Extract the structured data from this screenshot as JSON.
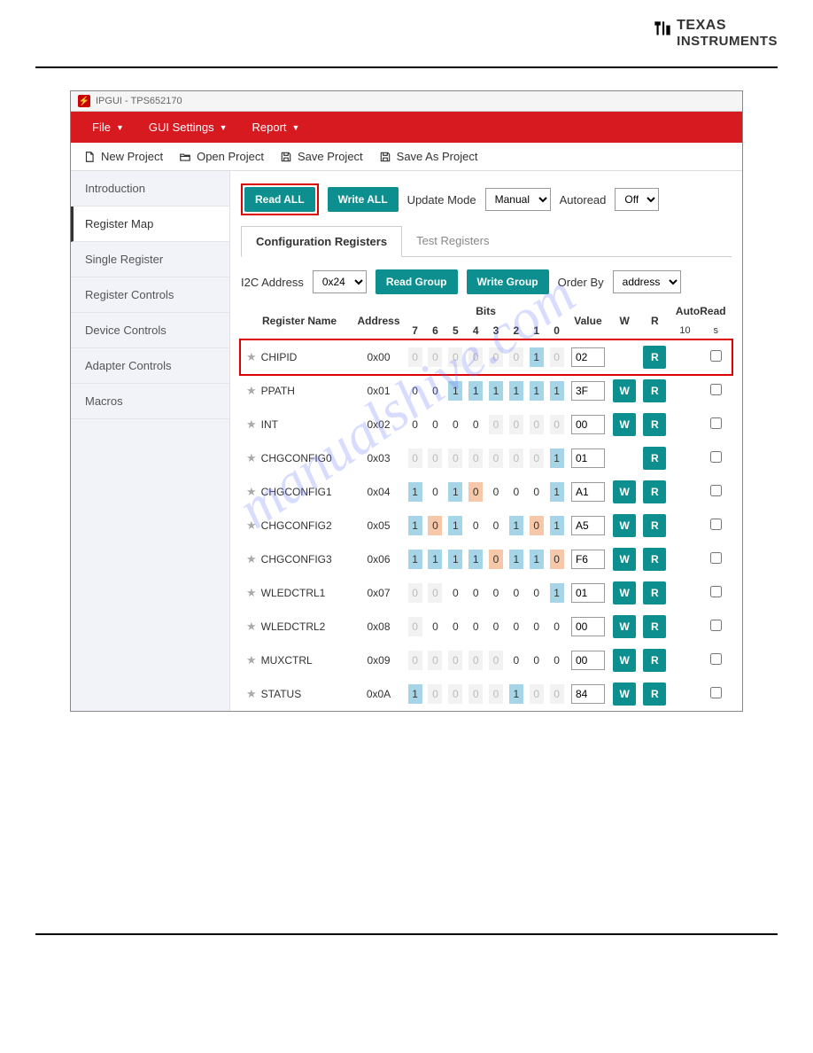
{
  "watermark": "manualshive.com",
  "logo": {
    "line1": "TEXAS",
    "line2": "INSTRUMENTS"
  },
  "window": {
    "title": "IPGUI - TPS652170"
  },
  "menu": {
    "items": [
      "File",
      "GUI Settings",
      "Report"
    ]
  },
  "toolbar": {
    "new_project": "New Project",
    "open_project": "Open Project",
    "save_project": "Save Project",
    "save_as_project": "Save As Project"
  },
  "sidebar": {
    "items": [
      "Introduction",
      "Register Map",
      "Single Register",
      "Register Controls",
      "Device Controls",
      "Adapter Controls",
      "Macros"
    ],
    "active_index": 1
  },
  "controls": {
    "read_all": "Read ALL",
    "write_all": "Write ALL",
    "update_mode_label": "Update Mode",
    "update_mode_value": "Manual",
    "autoread_label": "Autoread",
    "autoread_value": "Off"
  },
  "tabs": {
    "items": [
      "Configuration Registers",
      "Test Registers"
    ],
    "active_index": 0
  },
  "group": {
    "i2c_label": "I2C Address",
    "i2c_value": "0x24",
    "read_group": "Read Group",
    "write_group": "Write Group",
    "order_by_label": "Order By",
    "order_by_value": "address"
  },
  "table": {
    "headers": {
      "name": "Register Name",
      "address": "Address",
      "bits_title": "Bits",
      "bit_labels": [
        "7",
        "6",
        "5",
        "4",
        "3",
        "2",
        "1",
        "0"
      ],
      "value": "Value",
      "w": "W",
      "r": "R",
      "autoread_title": "AutoRead",
      "autoread_10": "10",
      "autoread_s": "s"
    },
    "colors": {
      "gray": "#f2f2f2",
      "blue": "#a6d5e8",
      "orange": "#f6c7a8",
      "teal": "#0e8f8f",
      "red_highlight": "#d00"
    },
    "rows": [
      {
        "name": "CHIPID",
        "addr": "0x00",
        "bits": [
          {
            "v": "0",
            "s": "gray"
          },
          {
            "v": "0",
            "s": "gray"
          },
          {
            "v": "0",
            "s": "gray"
          },
          {
            "v": "0",
            "s": "gray"
          },
          {
            "v": "0",
            "s": "gray"
          },
          {
            "v": "0",
            "s": "gray"
          },
          {
            "v": "1",
            "s": "blue"
          },
          {
            "v": "0",
            "s": "gray"
          }
        ],
        "value": "02",
        "w": false,
        "r": true,
        "highlight": true
      },
      {
        "name": "PPATH",
        "addr": "0x01",
        "bits": [
          {
            "v": "0",
            "s": "plain"
          },
          {
            "v": "0",
            "s": "plain"
          },
          {
            "v": "1",
            "s": "blue"
          },
          {
            "v": "1",
            "s": "blue"
          },
          {
            "v": "1",
            "s": "blue"
          },
          {
            "v": "1",
            "s": "blue"
          },
          {
            "v": "1",
            "s": "blue"
          },
          {
            "v": "1",
            "s": "blue"
          }
        ],
        "value": "3F",
        "w": true,
        "r": true
      },
      {
        "name": "INT",
        "addr": "0x02",
        "bits": [
          {
            "v": "0",
            "s": "plain"
          },
          {
            "v": "0",
            "s": "plain"
          },
          {
            "v": "0",
            "s": "plain"
          },
          {
            "v": "0",
            "s": "plain"
          },
          {
            "v": "0",
            "s": "gray"
          },
          {
            "v": "0",
            "s": "gray"
          },
          {
            "v": "0",
            "s": "gray"
          },
          {
            "v": "0",
            "s": "gray"
          }
        ],
        "value": "00",
        "w": true,
        "r": true
      },
      {
        "name": "CHGCONFIG0",
        "addr": "0x03",
        "bits": [
          {
            "v": "0",
            "s": "gray"
          },
          {
            "v": "0",
            "s": "gray"
          },
          {
            "v": "0",
            "s": "gray"
          },
          {
            "v": "0",
            "s": "gray"
          },
          {
            "v": "0",
            "s": "gray"
          },
          {
            "v": "0",
            "s": "gray"
          },
          {
            "v": "0",
            "s": "gray"
          },
          {
            "v": "1",
            "s": "blue"
          }
        ],
        "value": "01",
        "w": false,
        "r": true
      },
      {
        "name": "CHGCONFIG1",
        "addr": "0x04",
        "bits": [
          {
            "v": "1",
            "s": "blue"
          },
          {
            "v": "0",
            "s": "plain"
          },
          {
            "v": "1",
            "s": "blue"
          },
          {
            "v": "0",
            "s": "orange"
          },
          {
            "v": "0",
            "s": "plain"
          },
          {
            "v": "0",
            "s": "plain"
          },
          {
            "v": "0",
            "s": "plain"
          },
          {
            "v": "1",
            "s": "blue"
          }
        ],
        "value": "A1",
        "w": true,
        "r": true
      },
      {
        "name": "CHGCONFIG2",
        "addr": "0x05",
        "bits": [
          {
            "v": "1",
            "s": "blue"
          },
          {
            "v": "0",
            "s": "orange"
          },
          {
            "v": "1",
            "s": "blue"
          },
          {
            "v": "0",
            "s": "plain"
          },
          {
            "v": "0",
            "s": "plain"
          },
          {
            "v": "1",
            "s": "blue"
          },
          {
            "v": "0",
            "s": "orange"
          },
          {
            "v": "1",
            "s": "blue"
          }
        ],
        "value": "A5",
        "w": true,
        "r": true
      },
      {
        "name": "CHGCONFIG3",
        "addr": "0x06",
        "bits": [
          {
            "v": "1",
            "s": "blue"
          },
          {
            "v": "1",
            "s": "blue"
          },
          {
            "v": "1",
            "s": "blue"
          },
          {
            "v": "1",
            "s": "blue"
          },
          {
            "v": "0",
            "s": "orange"
          },
          {
            "v": "1",
            "s": "blue"
          },
          {
            "v": "1",
            "s": "blue"
          },
          {
            "v": "0",
            "s": "orange"
          }
        ],
        "value": "F6",
        "w": true,
        "r": true
      },
      {
        "name": "WLEDCTRL1",
        "addr": "0x07",
        "bits": [
          {
            "v": "0",
            "s": "gray"
          },
          {
            "v": "0",
            "s": "gray"
          },
          {
            "v": "0",
            "s": "plain"
          },
          {
            "v": "0",
            "s": "plain"
          },
          {
            "v": "0",
            "s": "plain"
          },
          {
            "v": "0",
            "s": "plain"
          },
          {
            "v": "0",
            "s": "plain"
          },
          {
            "v": "1",
            "s": "blue"
          }
        ],
        "value": "01",
        "w": true,
        "r": true
      },
      {
        "name": "WLEDCTRL2",
        "addr": "0x08",
        "bits": [
          {
            "v": "0",
            "s": "gray"
          },
          {
            "v": "0",
            "s": "plain"
          },
          {
            "v": "0",
            "s": "plain"
          },
          {
            "v": "0",
            "s": "plain"
          },
          {
            "v": "0",
            "s": "plain"
          },
          {
            "v": "0",
            "s": "plain"
          },
          {
            "v": "0",
            "s": "plain"
          },
          {
            "v": "0",
            "s": "plain"
          }
        ],
        "value": "00",
        "w": true,
        "r": true
      },
      {
        "name": "MUXCTRL",
        "addr": "0x09",
        "bits": [
          {
            "v": "0",
            "s": "gray"
          },
          {
            "v": "0",
            "s": "gray"
          },
          {
            "v": "0",
            "s": "gray"
          },
          {
            "v": "0",
            "s": "gray"
          },
          {
            "v": "0",
            "s": "gray"
          },
          {
            "v": "0",
            "s": "plain"
          },
          {
            "v": "0",
            "s": "plain"
          },
          {
            "v": "0",
            "s": "plain"
          }
        ],
        "value": "00",
        "w": true,
        "r": true
      },
      {
        "name": "STATUS",
        "addr": "0x0A",
        "bits": [
          {
            "v": "1",
            "s": "blue"
          },
          {
            "v": "0",
            "s": "gray"
          },
          {
            "v": "0",
            "s": "gray"
          },
          {
            "v": "0",
            "s": "gray"
          },
          {
            "v": "0",
            "s": "gray"
          },
          {
            "v": "1",
            "s": "blue"
          },
          {
            "v": "0",
            "s": "gray"
          },
          {
            "v": "0",
            "s": "gray"
          }
        ],
        "value": "84",
        "w": true,
        "r": true
      }
    ]
  }
}
